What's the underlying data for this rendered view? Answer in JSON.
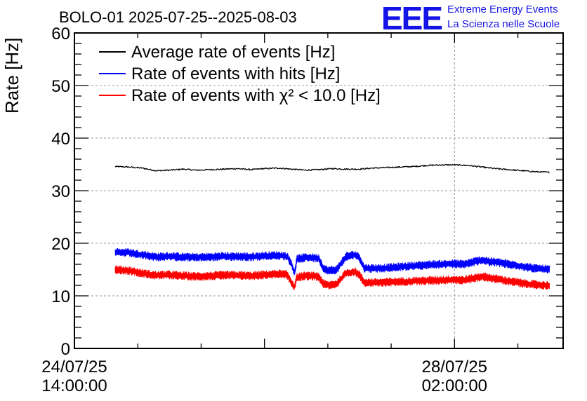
{
  "chart_data": {
    "type": "line",
    "title": "BOLO-01 2025-07-25--2025-08-03",
    "ylabel": "Rate [Hz]",
    "xlabel": "",
    "ylim": [
      0,
      60
    ],
    "yticks": [
      0,
      10,
      20,
      30,
      40,
      50,
      60
    ],
    "x_range_hours_since_2025-07-24T14:00": [
      0,
      108
    ],
    "x_ticks": [
      {
        "date": "24/07/25",
        "time": "14:00:00",
        "hours": 0
      },
      {
        "date": "28/07/25",
        "time": "02:00:00",
        "hours": 84
      }
    ],
    "grid": true,
    "legend_position": "top-left",
    "series": [
      {
        "name": "Average rate of events [Hz]",
        "color": "#000000",
        "noise": 0.12,
        "points": [
          [
            9,
            34.6
          ],
          [
            12,
            34.5
          ],
          [
            15,
            34.3
          ],
          [
            18,
            33.8
          ],
          [
            21,
            33.9
          ],
          [
            24,
            34.1
          ],
          [
            27,
            33.9
          ],
          [
            30,
            34.0
          ],
          [
            33,
            34.1
          ],
          [
            36,
            34.2
          ],
          [
            39,
            34.0
          ],
          [
            42,
            34.2
          ],
          [
            45,
            34.3
          ],
          [
            48,
            34.1
          ],
          [
            51,
            33.9
          ],
          [
            54,
            34.0
          ],
          [
            57,
            34.2
          ],
          [
            60,
            34.1
          ],
          [
            63,
            34.1
          ],
          [
            66,
            34.3
          ],
          [
            69,
            34.4
          ],
          [
            72,
            34.5
          ],
          [
            75,
            34.6
          ],
          [
            78,
            34.8
          ],
          [
            81,
            34.9
          ],
          [
            84,
            34.9
          ],
          [
            87,
            34.8
          ],
          [
            90,
            34.5
          ],
          [
            93,
            34.2
          ],
          [
            96,
            34.0
          ],
          [
            99,
            33.8
          ],
          [
            102,
            33.6
          ],
          [
            105,
            33.5
          ]
        ]
      },
      {
        "name": "Rate of events with hits [Hz]",
        "color": "#0000ff",
        "noise": 0.8,
        "points": [
          [
            9,
            18.3
          ],
          [
            12,
            18.2
          ],
          [
            15,
            17.8
          ],
          [
            18,
            17.4
          ],
          [
            21,
            17.5
          ],
          [
            24,
            17.4
          ],
          [
            27,
            17.3
          ],
          [
            30,
            17.4
          ],
          [
            33,
            17.5
          ],
          [
            36,
            17.5
          ],
          [
            39,
            17.4
          ],
          [
            42,
            17.6
          ],
          [
            45,
            17.7
          ],
          [
            47,
            17.5
          ],
          [
            48,
            16.0
          ],
          [
            48.6,
            14.3
          ],
          [
            49.2,
            17.0
          ],
          [
            51,
            17.3
          ],
          [
            54,
            17.2
          ],
          [
            55,
            15.3
          ],
          [
            56,
            14.8
          ],
          [
            58,
            15.0
          ],
          [
            60,
            17.5
          ],
          [
            62,
            17.8
          ],
          [
            63,
            17.3
          ],
          [
            64,
            15.3
          ],
          [
            66,
            15.2
          ],
          [
            69,
            15.3
          ],
          [
            72,
            15.5
          ],
          [
            75,
            15.7
          ],
          [
            78,
            15.9
          ],
          [
            81,
            16.0
          ],
          [
            84,
            16.1
          ],
          [
            86,
            16.0
          ],
          [
            88,
            16.4
          ],
          [
            90,
            16.8
          ],
          [
            92,
            16.5
          ],
          [
            94,
            16.3
          ],
          [
            96,
            16.0
          ],
          [
            99,
            15.6
          ],
          [
            102,
            15.2
          ],
          [
            105,
            15.0
          ]
        ]
      },
      {
        "name": "Rate of events with χ² < 10.0 [Hz]",
        "color": "#ff0000",
        "noise": 0.8,
        "points": [
          [
            9,
            15.0
          ],
          [
            12,
            14.8
          ],
          [
            15,
            14.3
          ],
          [
            18,
            13.9
          ],
          [
            21,
            14.0
          ],
          [
            24,
            13.8
          ],
          [
            27,
            13.7
          ],
          [
            30,
            13.8
          ],
          [
            33,
            13.9
          ],
          [
            36,
            13.9
          ],
          [
            39,
            13.8
          ],
          [
            42,
            14.0
          ],
          [
            45,
            14.2
          ],
          [
            47,
            14.0
          ],
          [
            48,
            12.5
          ],
          [
            48.6,
            11.7
          ],
          [
            49.2,
            13.5
          ],
          [
            51,
            13.8
          ],
          [
            54,
            13.7
          ],
          [
            55,
            12.3
          ],
          [
            56,
            12.0
          ],
          [
            58,
            12.3
          ],
          [
            60,
            14.3
          ],
          [
            62,
            14.6
          ],
          [
            63,
            14.0
          ],
          [
            64,
            12.6
          ],
          [
            66,
            12.5
          ],
          [
            69,
            12.6
          ],
          [
            72,
            12.7
          ],
          [
            75,
            12.8
          ],
          [
            78,
            12.9
          ],
          [
            81,
            13.0
          ],
          [
            84,
            13.1
          ],
          [
            86,
            13.0
          ],
          [
            88,
            13.3
          ],
          [
            90,
            13.7
          ],
          [
            92,
            13.4
          ],
          [
            94,
            13.1
          ],
          [
            96,
            12.8
          ],
          [
            99,
            12.4
          ],
          [
            102,
            12.1
          ],
          [
            105,
            12.0
          ]
        ]
      }
    ]
  },
  "logo": {
    "mark": "EEE",
    "line1": "Extreme Energy Events",
    "line2": "La Scienza nelle Scuole"
  }
}
